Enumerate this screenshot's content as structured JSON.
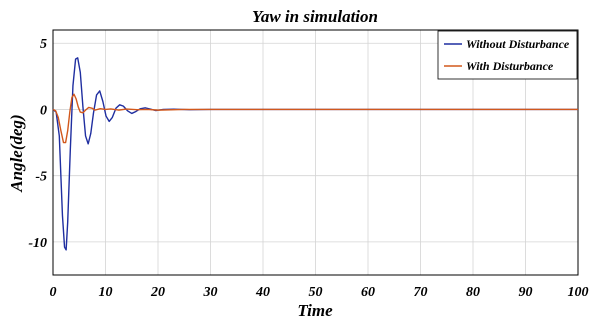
{
  "chart_data": {
    "type": "line",
    "title": "Yaw in simulation",
    "xlabel": "Time",
    "ylabel": "Angle(deg)",
    "xlim": [
      0,
      100
    ],
    "ylim": [
      -12.5,
      6
    ],
    "xticks": [
      0,
      10,
      20,
      30,
      40,
      50,
      60,
      70,
      80,
      90,
      100
    ],
    "yticks": [
      5,
      0,
      -5,
      -10
    ],
    "grid": true,
    "legend_position": "top-right",
    "series": [
      {
        "name": "Without Disturbance",
        "color": "#1f2ea0",
        "x": [
          0,
          0.6,
          1.2,
          1.8,
          2.2,
          2.5,
          2.8,
          3.3,
          3.8,
          4.3,
          4.7,
          5.2,
          5.7,
          6.2,
          6.7,
          7.2,
          7.7,
          8.3,
          8.9,
          9.5,
          10.1,
          10.7,
          11.3,
          12.0,
          12.7,
          13.4,
          14.2,
          15.0,
          15.8,
          16.6,
          17.6,
          18.6,
          19.6,
          21,
          23,
          26,
          30,
          40,
          60,
          80,
          100
        ],
        "y": [
          0,
          -0.2,
          -2.0,
          -8.0,
          -10.4,
          -10.6,
          -8.5,
          -3.0,
          1.8,
          3.8,
          3.9,
          2.8,
          0.2,
          -2.0,
          -2.6,
          -1.8,
          -0.3,
          1.1,
          1.4,
          0.6,
          -0.5,
          -0.9,
          -0.6,
          0.1,
          0.35,
          0.25,
          -0.1,
          -0.3,
          -0.15,
          0.05,
          0.12,
          0.02,
          -0.08,
          0.0,
          0.02,
          -0.02,
          0,
          0,
          0,
          0,
          0
        ]
      },
      {
        "name": "With Disturbance",
        "color": "#d2581c",
        "x": [
          0,
          0.5,
          1.0,
          1.5,
          2.0,
          2.4,
          2.8,
          3.2,
          3.6,
          4.0,
          4.4,
          4.8,
          5.2,
          5.7,
          6.2,
          6.8,
          7.4,
          8.0,
          9.0,
          10.0,
          11.0,
          12.5,
          14.0,
          16.0,
          18.0,
          20.0,
          25.0,
          30.0,
          100.0
        ],
        "y": [
          0,
          -0.1,
          -0.6,
          -1.6,
          -2.5,
          -2.5,
          -1.6,
          -0.2,
          0.9,
          1.15,
          0.8,
          0.2,
          -0.2,
          -0.25,
          -0.05,
          0.15,
          0.1,
          -0.05,
          0.06,
          0.0,
          0.04,
          -0.05,
          0.03,
          -0.02,
          0.0,
          -0.05,
          0.0,
          0.0,
          0.0
        ]
      }
    ]
  }
}
